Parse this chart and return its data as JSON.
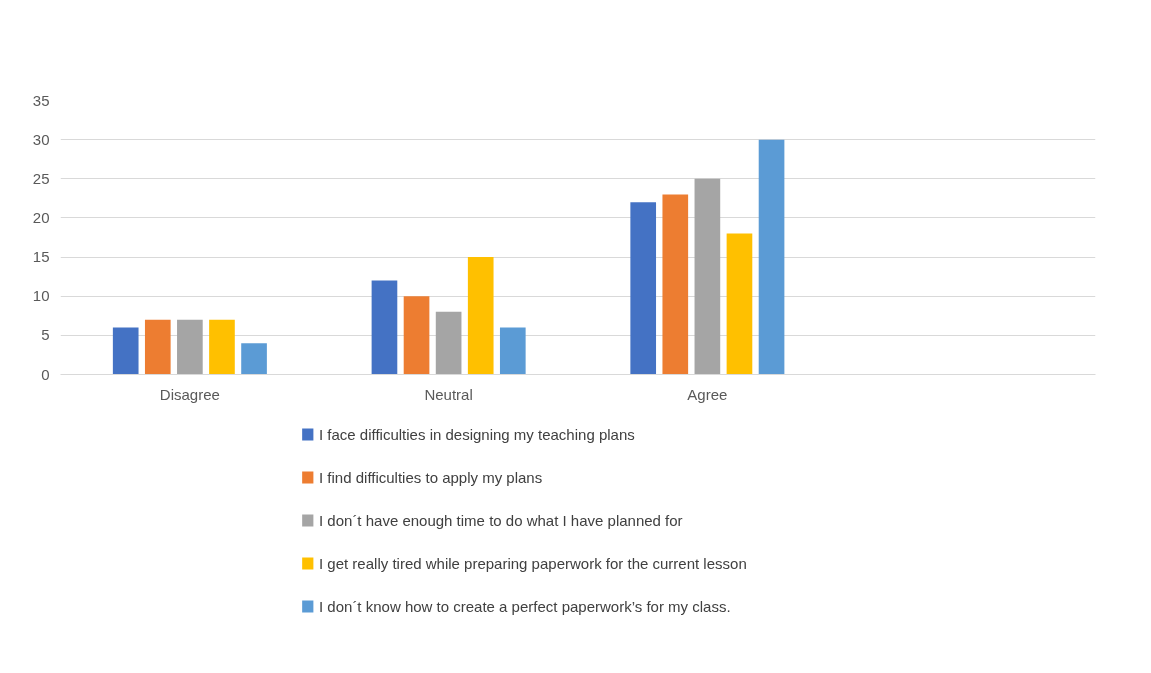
{
  "chart_data": {
    "type": "bar",
    "categories": [
      "Disagree",
      "Neutral",
      "Agree",
      null
    ],
    "series": [
      {
        "name": "I face difficulties in designing my teaching plans",
        "color": "#4472c4",
        "values": [
          6,
          12,
          22,
          null
        ]
      },
      {
        "name": "I find difficulties to apply my plans",
        "color": "#ed7d31",
        "values": [
          7,
          10,
          23,
          null
        ]
      },
      {
        "name": "I don´t have enough time to do what I have planned for",
        "color": "#a5a5a5",
        "values": [
          7,
          8,
          25,
          null
        ]
      },
      {
        "name": "I get really tired while preparing paperwork for the current lesson",
        "color": "#ffc000",
        "values": [
          7,
          15,
          18,
          null
        ]
      },
      {
        "name": "I don´t know how to create a perfect paperwork’s for my class.",
        "color": "#5b9bd5",
        "values": [
          4,
          6,
          30,
          null
        ]
      }
    ],
    "ylim": [
      0,
      35
    ],
    "yticks": [
      0,
      5,
      10,
      15,
      20,
      25,
      30,
      35
    ],
    "grid": "y",
    "legend": "bottom"
  }
}
